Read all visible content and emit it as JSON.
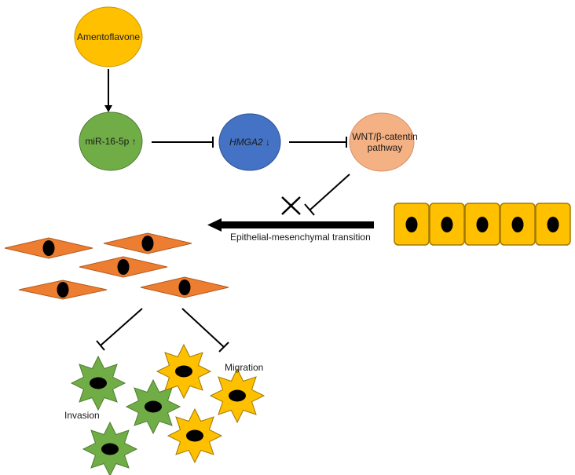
{
  "nodes": {
    "amentoflavone": {
      "label": "Amentoflavone",
      "color": "#FFC000"
    },
    "mir16": {
      "label": "miR-16-5p ↑",
      "color": "#70AD47"
    },
    "hmga2": {
      "label": "HMGA2",
      "suffix": " ↓",
      "color": "#4472C4"
    },
    "wnt": {
      "line1": "WNT/β-catentin",
      "line2": "pathway",
      "color": "#F4B183"
    }
  },
  "emt": {
    "label": "Epithelial-mesenchymal transition"
  },
  "outcomes": {
    "invasion": "Invasion",
    "migration": "Migration"
  },
  "colors": {
    "epithelial_cell": "#FFC000",
    "mesenchymal_cell": "#ED7D31",
    "invasive_cell": "#70AD47",
    "migrating_cell": "#FFC000",
    "nucleus": "#000000",
    "line": "#000000"
  }
}
